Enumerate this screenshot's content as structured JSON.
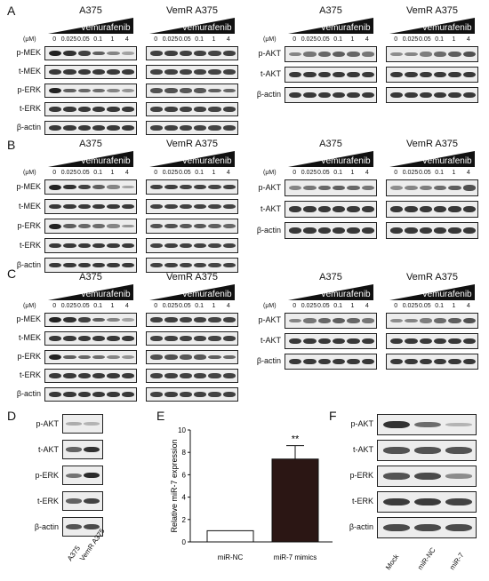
{
  "panels": [
    {
      "letter": "A"
    },
    {
      "letter": "B"
    },
    {
      "letter": "C"
    },
    {
      "letter": "D"
    },
    {
      "letter": "E"
    },
    {
      "letter": "F"
    }
  ],
  "cell_lines": {
    "parental": "A375",
    "resistant": "VemR A375"
  },
  "drug": "Vemurafenib",
  "unit": "(μM)",
  "doses": [
    "0",
    "0.025",
    "0.05",
    "0.1",
    "1",
    "4"
  ],
  "left_rows": [
    "p-MEK",
    "t-MEK",
    "p-ERK",
    "t-ERK",
    "β-actin"
  ],
  "right_rows": [
    "p-AKT",
    "t-AKT",
    "β-actin"
  ],
  "panel_D": {
    "rows": [
      "p-AKT",
      "t-AKT",
      "p-ERK",
      "t-ERK",
      "β-actin"
    ],
    "lanes": [
      "A375",
      "VemR A375"
    ]
  },
  "panel_F": {
    "rows": [
      "p-AKT",
      "t-AKT",
      "p-ERK",
      "t-ERK",
      "β-actin"
    ],
    "lanes": [
      "Mock",
      "miR-NC",
      "miR-7"
    ]
  },
  "chart_data": {
    "type": "bar",
    "categories": [
      "miR-NC",
      "miR-7 mimics"
    ],
    "values": [
      1.0,
      7.4
    ],
    "error": [
      0,
      1.2
    ],
    "ylabel": "Relative miR-7 expression",
    "ylim": [
      0,
      10
    ],
    "yticks": [
      "0",
      "2",
      "4",
      "6",
      "8",
      "10"
    ],
    "annotation": "**",
    "colors": [
      "#ffffff",
      "#2b1614"
    ]
  }
}
